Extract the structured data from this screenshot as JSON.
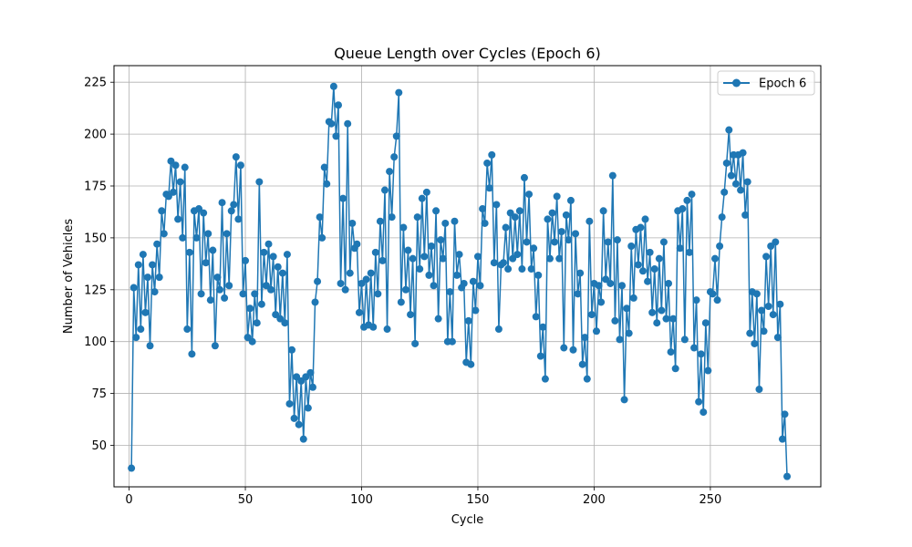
{
  "chart_data": {
    "type": "line",
    "title": "Queue Length over Cycles (Epoch 6)",
    "xlabel": "Cycle",
    "ylabel": "Number of Vehicles",
    "xlim": [
      -6.5,
      297.5
    ],
    "ylim": [
      30,
      233
    ],
    "xticks": [
      0,
      50,
      100,
      150,
      200,
      250
    ],
    "yticks": [
      50,
      75,
      100,
      125,
      150,
      175,
      200,
      225
    ],
    "grid": true,
    "legend_position": "top-right",
    "colors": {
      "series": "#1f77b4",
      "grid": "#b0b0b0",
      "frame": "#000000"
    },
    "x_start": 1,
    "series": [
      {
        "name": "Epoch 6",
        "marker": "circle",
        "values": [
          39,
          126,
          102,
          137,
          106,
          142,
          114,
          131,
          98,
          137,
          124,
          147,
          131,
          163,
          152,
          171,
          170,
          187,
          172,
          185,
          159,
          177,
          150,
          184,
          106,
          143,
          94,
          163,
          150,
          164,
          123,
          162,
          138,
          152,
          120,
          144,
          98,
          131,
          125,
          167,
          121,
          152,
          127,
          163,
          166,
          189,
          159,
          185,
          123,
          139,
          102,
          116,
          100,
          123,
          109,
          177,
          118,
          143,
          127,
          147,
          125,
          141,
          113,
          136,
          111,
          133,
          109,
          142,
          70,
          96,
          63,
          83,
          60,
          81,
          53,
          83,
          68,
          85,
          78,
          119,
          129,
          160,
          150,
          184,
          176,
          206,
          205,
          223,
          199,
          214,
          128,
          169,
          125,
          205,
          133,
          157,
          145,
          147,
          114,
          128,
          107,
          130,
          108,
          133,
          107,
          143,
          123,
          158,
          139,
          173,
          106,
          182,
          160,
          189,
          199,
          220,
          119,
          155,
          125,
          144,
          113,
          140,
          99,
          160,
          135,
          169,
          141,
          172,
          132,
          146,
          127,
          163,
          111,
          149,
          140,
          157,
          100,
          124,
          100,
          158,
          132,
          142,
          126,
          128,
          90,
          110,
          89,
          129,
          115,
          141,
          127,
          164,
          157,
          186,
          174,
          190,
          138,
          166,
          106,
          137,
          138,
          155,
          135,
          162,
          140,
          160,
          142,
          163,
          135,
          179,
          148,
          171,
          135,
          145,
          112,
          132,
          93,
          107,
          82,
          159,
          140,
          162,
          148,
          170,
          140,
          153,
          97,
          161,
          149,
          168,
          96,
          152,
          123,
          133,
          89,
          102,
          82,
          158,
          113,
          128,
          105,
          127,
          119,
          163,
          130,
          148,
          128,
          180,
          110,
          149,
          101,
          127,
          72,
          116,
          104,
          146,
          121,
          154,
          137,
          155,
          134,
          159,
          129,
          143,
          114,
          135,
          109,
          140,
          115,
          148,
          111,
          128,
          95,
          111,
          87,
          163,
          145,
          164,
          101,
          168,
          143,
          171,
          97,
          120,
          71,
          94,
          66,
          109,
          86,
          124,
          123,
          140,
          120,
          146,
          160,
          172,
          186,
          202,
          180,
          190,
          176,
          190,
          173,
          191,
          161,
          177,
          104,
          124,
          99,
          123,
          77,
          115,
          105,
          141,
          117,
          146,
          113,
          148,
          102,
          118,
          53,
          65,
          35
        ]
      }
    ]
  }
}
